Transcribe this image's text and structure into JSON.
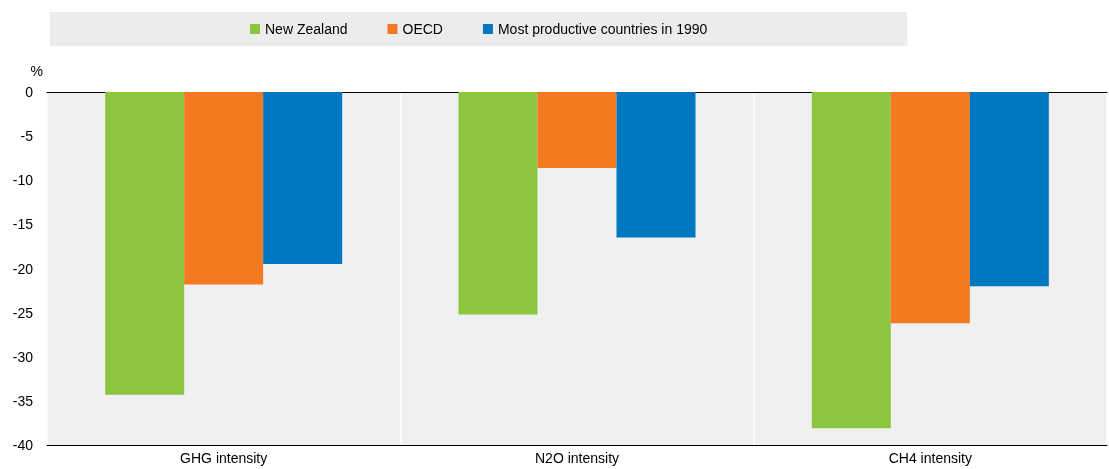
{
  "chart_data": {
    "type": "bar",
    "ylabel": "%",
    "categories": [
      "GHG intensity",
      "N2O intensity",
      "CH4 intensity"
    ],
    "series": [
      {
        "name": "New Zealand",
        "color": "#8cc63f",
        "values": [
          -34.3,
          -25.2,
          -38.1
        ]
      },
      {
        "name": "OECD",
        "color": "#f47920",
        "values": [
          -21.8,
          -8.6,
          -26.2
        ]
      },
      {
        "name": "Most productive countries in 1990",
        "color": "#0077c0",
        "values": [
          -19.5,
          -16.5,
          -22.0
        ]
      }
    ],
    "ylim": [
      -40,
      0
    ],
    "yticks": [
      -40,
      -35,
      -30,
      -25,
      -20,
      -15,
      -10,
      -5,
      0
    ],
    "grid": "x",
    "legend": "top"
  }
}
